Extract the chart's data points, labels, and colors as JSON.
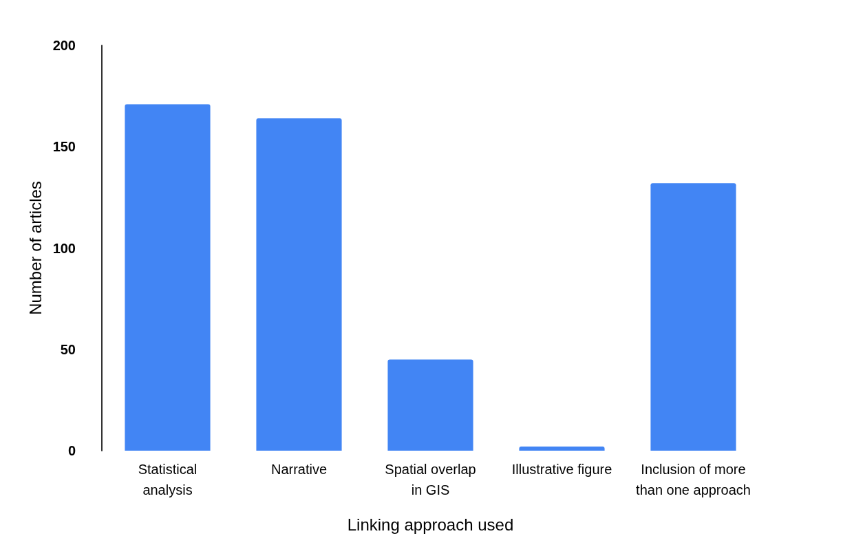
{
  "chart_data": {
    "type": "bar",
    "xlabel": "Linking approach used",
    "ylabel": "Number of articles",
    "categories": [
      "Statistical\nanalysis",
      "Narrative",
      "Spatial overlap\nin GIS",
      "Illustrative figure",
      "Inclusion of more\nthan one approach"
    ],
    "values": [
      171,
      164,
      45,
      2,
      132
    ],
    "color": "#4285f4",
    "ylim": [
      0,
      200
    ],
    "yticks": [
      0,
      50,
      100,
      150,
      200
    ],
    "grid": false
  }
}
